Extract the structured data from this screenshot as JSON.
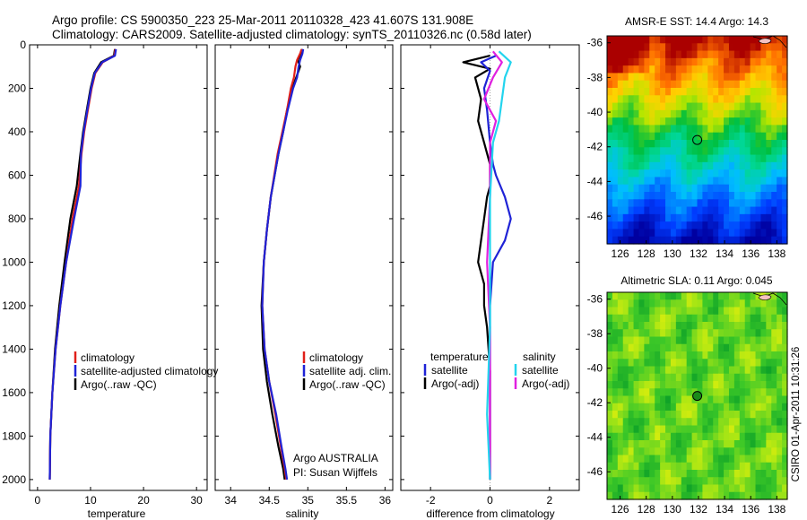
{
  "header": {
    "line1": "Argo profile: CS 5900350_223 25-Mar-2011 20110328_423 41.607S 131.908E",
    "line2": "Climatology: CARS2009. Satellite-adjusted climatology: synTS_20110326.nc (0.58d later)"
  },
  "side_label": "CSIRO 01-Apr-2011 10:31:26",
  "colors": {
    "climatology": "#e0201a",
    "satellite": "#1f23d6",
    "argo": "#000000",
    "salinity_satellite": "#22d4ee",
    "salinity_argo": "#e020e0",
    "argo_marker": "#1a8a1a"
  },
  "chart_data": [
    {
      "type": "line",
      "name": "temperature-profile",
      "xlabel": "temperature",
      "ylabel": "",
      "xlim": [
        -1.5,
        32
      ],
      "ylim": [
        0,
        2050
      ],
      "y_reversed": true,
      "xticks": [
        0,
        10,
        20,
        30
      ],
      "yticks": [
        0,
        200,
        400,
        600,
        800,
        1000,
        1200,
        1400,
        1600,
        1800,
        2000
      ],
      "legend": {
        "placement": "lower-right",
        "entries": [
          {
            "label": "climatology",
            "color_key": "climatology"
          },
          {
            "label": "satellite-adjusted climatology",
            "color_key": "satellite"
          },
          {
            "label": "Argo(..raw -QC)",
            "color_key": "argo"
          }
        ]
      },
      "series": [
        {
          "color_key": "argo",
          "x": [
            14.6,
            14.4,
            12.0,
            10.7,
            10.0,
            9.3,
            8.6,
            8.1,
            7.4,
            6.2,
            5.1,
            4.1,
            3.3,
            2.8,
            2.4,
            2.3
          ],
          "y": [
            20,
            50,
            80,
            130,
            200,
            300,
            400,
            500,
            650,
            800,
            1000,
            1200,
            1400,
            1600,
            1800,
            2000
          ]
        },
        {
          "color_key": "climatology",
          "x": [
            14.7,
            14.5,
            12.3,
            10.9,
            10.2,
            9.5,
            8.8,
            8.3,
            7.8,
            6.6,
            5.4,
            4.3,
            3.4,
            2.8,
            2.4,
            2.3
          ],
          "y": [
            20,
            50,
            80,
            130,
            200,
            300,
            400,
            500,
            650,
            800,
            1000,
            1200,
            1400,
            1600,
            1800,
            2000
          ]
        },
        {
          "color_key": "satellite",
          "x": [
            14.8,
            14.6,
            12.2,
            10.8,
            10.1,
            9.4,
            8.7,
            8.2,
            8.1,
            6.9,
            5.4,
            4.3,
            3.4,
            2.8,
            2.4,
            2.3
          ],
          "y": [
            20,
            50,
            80,
            130,
            200,
            300,
            400,
            500,
            650,
            800,
            1000,
            1200,
            1400,
            1600,
            1800,
            2000
          ]
        }
      ]
    },
    {
      "type": "line",
      "name": "salinity-profile",
      "xlabel": "salinity",
      "ylabel": "",
      "xlim": [
        33.8,
        36.1
      ],
      "ylim": [
        0,
        2050
      ],
      "y_reversed": true,
      "xticks": [
        34,
        34.5,
        35,
        35.5,
        36
      ],
      "legend": {
        "placement": "lower-right",
        "entries": [
          {
            "label": "climatology",
            "color_key": "climatology"
          },
          {
            "label": "satellite adj. clim.",
            "color_key": "satellite"
          },
          {
            "label": "Argo(..raw -QC)",
            "color_key": "argo"
          }
        ]
      },
      "annotation": {
        "line1": "Argo AUSTRALIA",
        "line2": "PI: Susan Wijffels"
      },
      "series": [
        {
          "color_key": "argo",
          "x": [
            34.93,
            34.91,
            34.87,
            34.9,
            34.85,
            34.8,
            34.73,
            34.68,
            34.62,
            34.52,
            34.47,
            34.43,
            34.4,
            34.42,
            34.47,
            34.54,
            34.62,
            34.68,
            34.7
          ],
          "y": [
            20,
            40,
            70,
            100,
            150,
            200,
            300,
            400,
            500,
            700,
            850,
            1000,
            1200,
            1400,
            1550,
            1700,
            1850,
            1950,
            2000
          ]
        },
        {
          "color_key": "climatology",
          "x": [
            34.92,
            34.9,
            34.86,
            34.84,
            34.82,
            34.78,
            34.73,
            34.67,
            34.61,
            34.52,
            34.47,
            34.43,
            34.41,
            34.44,
            34.5,
            34.58,
            34.65,
            34.7,
            34.72
          ],
          "y": [
            20,
            40,
            70,
            100,
            150,
            200,
            300,
            400,
            500,
            700,
            850,
            1000,
            1200,
            1400,
            1550,
            1700,
            1850,
            1950,
            2000
          ]
        },
        {
          "color_key": "satellite",
          "x": [
            34.94,
            34.93,
            34.9,
            34.88,
            34.86,
            34.81,
            34.74,
            34.68,
            34.62,
            34.52,
            34.47,
            34.43,
            34.41,
            34.44,
            34.5,
            34.59,
            34.66,
            34.71,
            34.73
          ],
          "y": [
            20,
            40,
            70,
            100,
            150,
            200,
            300,
            400,
            500,
            700,
            850,
            1000,
            1200,
            1400,
            1550,
            1700,
            1850,
            1950,
            2000
          ]
        }
      ]
    },
    {
      "type": "line",
      "name": "difference-profile",
      "xlabel": "difference from climatology",
      "ylabel": "",
      "xlim": [
        -3,
        3
      ],
      "ylim": [
        0,
        2050
      ],
      "y_reversed": true,
      "xticks": [
        -2,
        0,
        2
      ],
      "legend": {
        "placement": "lower-center",
        "groups": [
          {
            "title": "temperature",
            "entries": [
              {
                "label": "satellite",
                "color_key": "satellite"
              },
              {
                "label": "Argo(-adj)",
                "color_key": "argo"
              }
            ]
          },
          {
            "title": "salinity",
            "entries": [
              {
                "label": "satellite",
                "color_key": "salinity_satellite"
              },
              {
                "label": "Argo(-adj)",
                "color_key": "salinity_argo"
              }
            ]
          }
        ]
      },
      "series": [
        {
          "color_key": "argo",
          "x": [
            0.0,
            -0.9,
            0.0,
            -0.5,
            -0.3,
            -0.4,
            -0.2,
            -0.1,
            0.0,
            0.0,
            -0.1,
            -0.2,
            -0.3,
            -0.4,
            -0.2,
            -0.2,
            -0.1,
            0.0,
            0.0,
            0.0
          ],
          "y": [
            50,
            80,
            110,
            150,
            250,
            350,
            450,
            500,
            550,
            650,
            700,
            800,
            900,
            1000,
            1100,
            1200,
            1300,
            1500,
            1800,
            2000
          ]
        },
        {
          "color_key": "satellite",
          "x": [
            0.2,
            -0.3,
            0.0,
            -0.2,
            -0.1,
            0.0,
            0.1,
            0.2,
            0.5,
            0.7,
            0.5,
            0.1,
            0.0,
            0.0,
            0.0,
            0.0
          ],
          "y": [
            50,
            80,
            120,
            200,
            300,
            450,
            550,
            600,
            700,
            800,
            900,
            1000,
            1200,
            1500,
            1800,
            2000
          ]
        },
        {
          "color_key": "salinity_argo",
          "x": [
            0.1,
            0.4,
            0.1,
            -0.2,
            0.2,
            0.0,
            0.0,
            -0.1,
            0.0,
            0.0,
            0.0
          ],
          "y": [
            30,
            80,
            150,
            250,
            350,
            450,
            700,
            1000,
            1300,
            1700,
            2000
          ]
        },
        {
          "color_key": "salinity_satellite",
          "x": [
            0.3,
            0.7,
            0.5,
            0.4,
            0.3,
            0.1,
            0.0,
            0.0,
            0.0,
            -0.1,
            0.0
          ],
          "y": [
            30,
            80,
            150,
            250,
            350,
            450,
            700,
            1000,
            1300,
            1700,
            2000
          ]
        }
      ]
    },
    {
      "type": "heatmap",
      "name": "sst-map",
      "title": "AMSR-E SST: 14.4 Argo: 14.3",
      "xlim": [
        125,
        138.8
      ],
      "ylim": [
        -47.6,
        -35.6
      ],
      "xticks": [
        126,
        128,
        130,
        132,
        134,
        136,
        138
      ],
      "yticks": [
        -36,
        -38,
        -40,
        -42,
        -44,
        -46
      ],
      "marker": {
        "lon": 131.908,
        "lat": -41.607
      }
    },
    {
      "type": "heatmap",
      "name": "sla-map",
      "title": "Altimetric SLA: 0.11 Argo: 0.045",
      "xlim": [
        125,
        138.8
      ],
      "ylim": [
        -47.6,
        -35.6
      ],
      "xticks": [
        126,
        128,
        130,
        132,
        134,
        136,
        138
      ],
      "yticks": [
        -36,
        -38,
        -40,
        -42,
        -44,
        -46
      ],
      "marker": {
        "lon": 131.908,
        "lat": -41.607
      }
    }
  ]
}
